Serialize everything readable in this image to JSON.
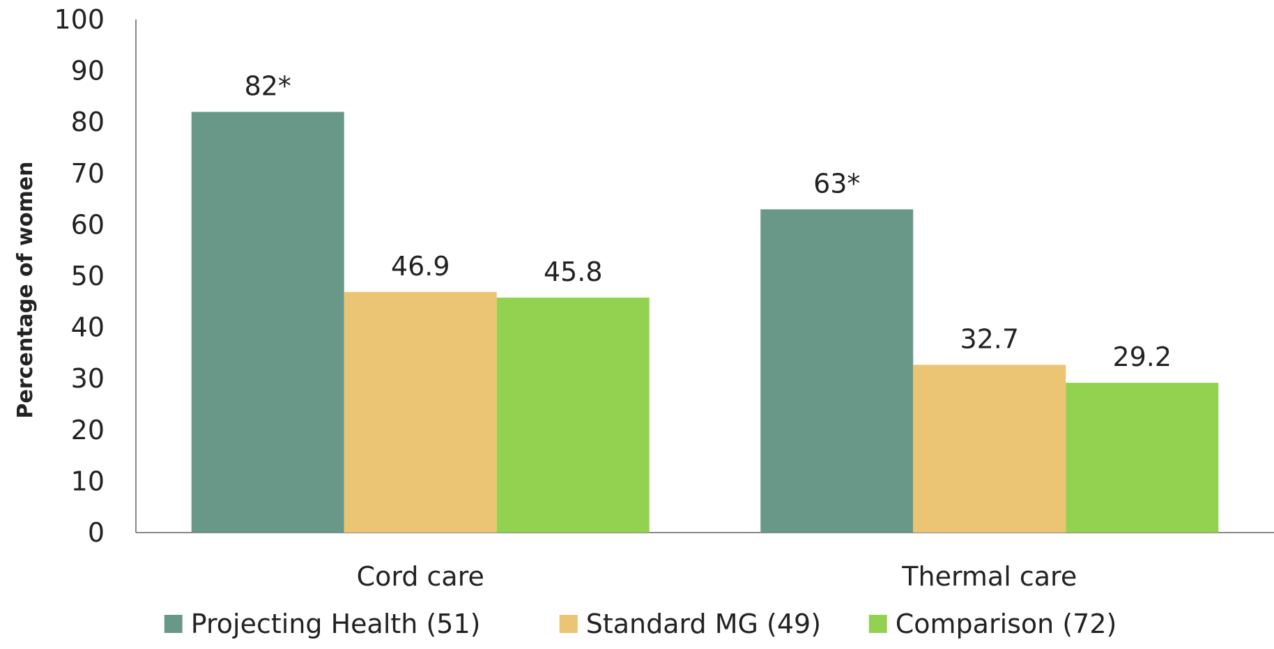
{
  "chart_data": {
    "type": "bar",
    "title": "",
    "xlabel": "",
    "ylabel": "Percentage of  women",
    "ylim": [
      0,
      100
    ],
    "yticks": [
      0,
      10,
      20,
      30,
      40,
      50,
      60,
      70,
      80,
      90,
      100
    ],
    "grid": false,
    "legend_position": "bottom",
    "categories": [
      "Cord care",
      "Thermal care"
    ],
    "series": [
      {
        "name": "Projecting Health (51)",
        "color": "#6a9888",
        "values": [
          82,
          63
        ],
        "labels": [
          "82*",
          "63*"
        ]
      },
      {
        "name": "Standard MG (49)",
        "color": "#ebc474",
        "values": [
          46.9,
          32.7
        ],
        "labels": [
          "46.9",
          "32.7"
        ]
      },
      {
        "name": "Comparison (72)",
        "color": "#93d250",
        "values": [
          45.8,
          29.2
        ],
        "labels": [
          "45.8",
          "29.2"
        ]
      }
    ]
  }
}
